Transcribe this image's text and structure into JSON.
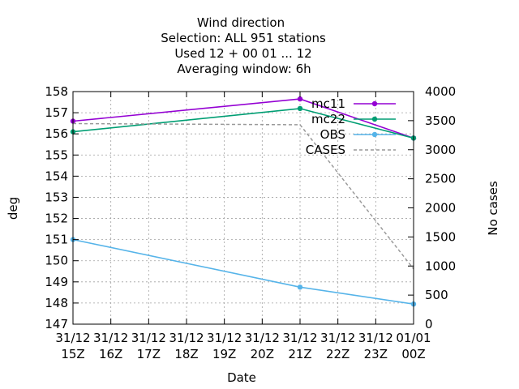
{
  "chart_data": {
    "type": "line",
    "title_lines": [
      "Wind direction",
      "Selection: ALL    951 stations",
      "Used  12 + 00 01 ... 12",
      "Averaging window:  6h"
    ],
    "xlabel": "Date",
    "ylabel": "deg",
    "y2label": "No cases",
    "x_ticks": [
      {
        "top": "31/12",
        "bottom": "15Z"
      },
      {
        "top": "31/12",
        "bottom": "16Z"
      },
      {
        "top": "31/12",
        "bottom": "17Z"
      },
      {
        "top": "31/12",
        "bottom": "18Z"
      },
      {
        "top": "31/12",
        "bottom": "19Z"
      },
      {
        "top": "31/12",
        "bottom": "20Z"
      },
      {
        "top": "31/12",
        "bottom": "21Z"
      },
      {
        "top": "31/12",
        "bottom": "22Z"
      },
      {
        "top": "31/12",
        "bottom": "23Z"
      },
      {
        "top": "01/01",
        "bottom": "00Z"
      }
    ],
    "xlim": [
      0,
      9
    ],
    "ylim": [
      147,
      158
    ],
    "y_ticks": [
      147,
      148,
      149,
      150,
      151,
      152,
      153,
      154,
      155,
      156,
      157,
      158
    ],
    "y2lim": [
      0,
      4000
    ],
    "y2_ticks": [
      0,
      500,
      1000,
      1500,
      2000,
      2500,
      3000,
      3500,
      4000
    ],
    "grid": true,
    "legend_position": "top-right",
    "series": [
      {
        "name": "mc11",
        "color": "#9400d3",
        "axis": "y",
        "marker": "filled-circle",
        "dashed": false,
        "x": [
          0,
          6,
          9
        ],
        "values": [
          156.6,
          157.65,
          155.8
        ]
      },
      {
        "name": "mc22",
        "color": "#009e73",
        "axis": "y",
        "marker": "filled-circle",
        "dashed": false,
        "x": [
          0,
          6,
          9
        ],
        "values": [
          156.1,
          157.2,
          155.8
        ]
      },
      {
        "name": "OBS",
        "color": "#56b4e9",
        "axis": "y",
        "marker": "filled-circle",
        "dashed": false,
        "x": [
          0,
          6,
          9
        ],
        "values": [
          151.0,
          148.75,
          147.95
        ]
      },
      {
        "name": "CASES",
        "color": "#999999",
        "axis": "y2",
        "marker": "none",
        "dashed": true,
        "x": [
          0,
          6,
          9
        ],
        "values": [
          3450,
          3430,
          950
        ]
      }
    ]
  }
}
